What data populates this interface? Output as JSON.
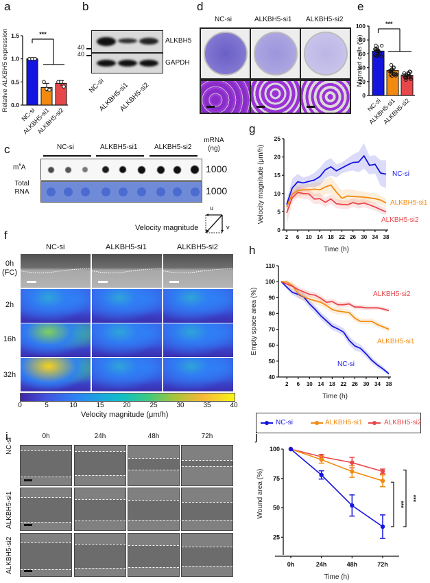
{
  "panels": {
    "a": {
      "label": "a"
    },
    "b": {
      "label": "b"
    },
    "c": {
      "label": "c"
    },
    "d": {
      "label": "d"
    },
    "e": {
      "label": "e"
    },
    "f": {
      "label": "f"
    },
    "g": {
      "label": "g"
    },
    "h": {
      "label": "h"
    },
    "i": {
      "label": "i"
    },
    "j": {
      "label": "j"
    }
  },
  "groups": [
    "NC-si",
    "ALKBH5-si1",
    "ALKBH5-si2"
  ],
  "colors": {
    "nc": "#1515e0",
    "si1": "#f28a10",
    "si2": "#e8474a"
  },
  "blot": {
    "marker1": "40",
    "marker2": "40",
    "protein1": "ALKBH5",
    "protein2": "GAPDH",
    "band_intensity": [
      1.0,
      0.45,
      0.7
    ]
  },
  "dotblot": {
    "row1_label_main": "m",
    "row1_label_sup": "6",
    "row1_label_end": "A",
    "row2_label_line1": "Total",
    "row2_label_line2": "RNA",
    "header_line1": "mRNA",
    "header_line2": "(ng)",
    "amount1": "1000",
    "amount2": "1000"
  },
  "velocity_legend": {
    "label": "Velocity magnitude",
    "u": "u",
    "v": "v"
  },
  "flow_map": {
    "rows": [
      "0h\n(FC)",
      "2h",
      "16h",
      "32h"
    ],
    "row_line1": [
      "0h",
      "2h",
      "16h",
      "32h"
    ],
    "row_line2": [
      "(FC)",
      "",
      "",
      ""
    ],
    "colorbar_ticks": [
      "0",
      "5",
      "10",
      "15",
      "20",
      "25",
      "30",
      "35",
      "40"
    ],
    "colorbar_label": "Velocity magnitude (μm/h)"
  },
  "wound_images": {
    "timepoints": [
      "0h",
      "24h",
      "48h",
      "72h"
    ],
    "rows": [
      "NC-si",
      "ALKBH5-si1",
      "ALKBH5-si2"
    ]
  },
  "chart_data": [
    {
      "id": "a",
      "type": "bar",
      "title": "",
      "xlabel": "",
      "ylabel": "Relative ALKBH5 expression",
      "ylabel_pre": "Relative ",
      "ylabel_italic": "ALKBH5",
      "ylabel_post": " expression",
      "categories": [
        "NC-si",
        "ALKBH5-si1",
        "ALKBH5-si2"
      ],
      "values": [
        1.0,
        0.38,
        0.47
      ],
      "points": [
        [
          1.0,
          1.0,
          1.0
        ],
        [
          0.5,
          0.35,
          0.33
        ],
        [
          0.5,
          0.5,
          0.4
        ]
      ],
      "errors": [
        0.0,
        0.09,
        0.06
      ],
      "ylim": [
        0,
        1.5
      ],
      "yticks": [
        "0.0",
        "0.5",
        "1.0",
        "1.5"
      ],
      "significance": "***"
    },
    {
      "id": "e",
      "type": "bar",
      "title": "",
      "xlabel": "",
      "ylabel": "Migrated cells (%)",
      "categories": [
        "NC-si",
        "ALKBH5-si1",
        "ALKBH5-si2"
      ],
      "values": [
        64,
        36,
        29
      ],
      "errors": [
        8,
        8,
        6
      ],
      "ylim": [
        0,
        100
      ],
      "yticks": [
        "0",
        "20",
        "40",
        "60",
        "80",
        "100"
      ],
      "significance": "***"
    },
    {
      "id": "g",
      "type": "line",
      "xlabel": "Time (h)",
      "ylabel": "Velocity magnitude (μm/h)",
      "xlim": [
        2,
        38
      ],
      "ylim": [
        0,
        25
      ],
      "xticks": [
        "2",
        "6",
        "10",
        "14",
        "18",
        "22",
        "26",
        "30",
        "34",
        "38"
      ],
      "yticks": [
        "0",
        "5",
        "10",
        "15",
        "20",
        "25"
      ],
      "x": [
        2,
        4,
        6,
        8,
        10,
        12,
        14,
        16,
        18,
        20,
        22,
        24,
        26,
        28,
        30,
        32,
        34,
        36,
        38
      ],
      "series": [
        {
          "name": "NC-si",
          "values": [
            7,
            11.5,
            13.2,
            12.9,
            13.3,
            13.7,
            14.6,
            16.5,
            17.3,
            16.2,
            17.0,
            17.8,
            18.5,
            18.6,
            20.3,
            17.7,
            18.0,
            15.6,
            15.3
          ],
          "band": [
            1.2,
            2.5,
            2.2,
            1.5,
            1.5,
            2.0,
            2.4,
            2.4,
            2.4,
            1.8,
            1.5,
            1.8,
            2.2,
            2.8,
            3.5,
            2.5,
            2.5,
            3.5,
            3.8
          ]
        },
        {
          "name": "ALKBH5-si1",
          "values": [
            6.3,
            9.8,
            10.8,
            11.0,
            11.0,
            11.2,
            11.0,
            11.8,
            12.3,
            10.4,
            8.7,
            9.3,
            9.2,
            9.1,
            9.0,
            8.8,
            8.6,
            8.2,
            7.4
          ],
          "band": [
            1.2,
            1.5,
            1.6,
            1.5,
            1.6,
            1.8,
            2.0,
            2.0,
            2.3,
            2.3,
            2.1,
            2.0,
            1.8,
            1.6,
            1.5,
            1.4,
            1.4,
            1.3,
            1.2
          ]
        },
        {
          "name": "ALKBH5-si2",
          "values": [
            4.7,
            8.8,
            10.3,
            10.0,
            9.9,
            8.5,
            8.6,
            7.6,
            8.5,
            7.2,
            7.0,
            6.9,
            7.5,
            7.1,
            7.4,
            6.9,
            6.3,
            5.6,
            5.0
          ],
          "band": [
            3.2,
            1.5,
            1.5,
            1.5,
            1.5,
            1.4,
            1.4,
            1.3,
            1.3,
            1.2,
            1.2,
            1.2,
            1.2,
            1.2,
            1.2,
            1.1,
            1.0,
            1.0,
            1.0
          ]
        }
      ]
    },
    {
      "id": "h",
      "type": "line",
      "xlabel": "Time (h)",
      "ylabel": "Empty space area (%)",
      "xlim": [
        0,
        38
      ],
      "ylim": [
        40,
        110
      ],
      "xticks": [
        "2",
        "6",
        "10",
        "14",
        "18",
        "22",
        "26",
        "30",
        "34",
        "38"
      ],
      "yticks": [
        "40",
        "50",
        "60",
        "70",
        "80",
        "90",
        "100",
        "110"
      ],
      "x": [
        0,
        2,
        4,
        6,
        8,
        10,
        12,
        14,
        16,
        18,
        20,
        22,
        24,
        26,
        28,
        30,
        32,
        34,
        36,
        38
      ],
      "series": [
        {
          "name": "NC-si",
          "values": [
            100,
            96.5,
            93.2,
            92,
            90.3,
            86,
            82.5,
            78.5,
            75.3,
            72,
            70.3,
            68.3,
            63,
            59.5,
            58,
            54.5,
            50.5,
            47.5,
            45,
            42
          ],
          "band": [
            0.5,
            1.2,
            1.8,
            2.2,
            2.4,
            2.5,
            2.5,
            2.4,
            2.4,
            2.3,
            2.3,
            2.5,
            2.8,
            2.8,
            2.4,
            2.2,
            2.0,
            1.8,
            1.5,
            1.2
          ]
        },
        {
          "name": "ALKBH5-si1",
          "values": [
            100,
            99.8,
            97.5,
            92.5,
            90.5,
            89,
            88,
            87,
            85,
            82.5,
            81.5,
            81,
            80.5,
            77,
            75,
            75,
            75,
            73,
            71.5,
            70
          ],
          "band": [
            0.5,
            1.5,
            2.5,
            3,
            2.5,
            2.2,
            2.2,
            2.2,
            2.2,
            2.2,
            2.2,
            2.0,
            2.0,
            2.0,
            1.8,
            1.8,
            1.8,
            1.8,
            1.6,
            1.5
          ]
        },
        {
          "name": "ALKBH5-si2",
          "values": [
            100,
            98.5,
            97,
            95,
            93.5,
            92,
            91.5,
            89.5,
            87,
            87.5,
            85.5,
            85.5,
            86,
            84,
            84,
            83.5,
            83.5,
            83.5,
            82.8,
            81.8
          ],
          "band": [
            0.5,
            1.5,
            2.0,
            2.0,
            2.0,
            2.0,
            1.8,
            1.8,
            1.8,
            1.8,
            1.8,
            1.6,
            1.6,
            1.5,
            1.5,
            1.4,
            1.4,
            1.3,
            1.2,
            1.2
          ]
        }
      ],
      "annotations": [
        "ALKBH5-si2",
        "ALKBH5-si1",
        "NC-si"
      ]
    },
    {
      "id": "j",
      "type": "line",
      "xlabel": "Time (h)",
      "ylabel": "Wound area (%)",
      "categories": [
        "0h",
        "24h",
        "48h",
        "72h"
      ],
      "ylim": [
        10,
        100
      ],
      "yticks": [
        "25",
        "50",
        "75",
        "100"
      ],
      "legend": [
        "NC-si",
        "ALKBH5-si1",
        "ALKBH5-si2"
      ],
      "legend_position": "top",
      "series": [
        {
          "name": "NC-si",
          "values": [
            100,
            78,
            52,
            34
          ],
          "errors": [
            0,
            3.5,
            9,
            10
          ]
        },
        {
          "name": "ALKBH5-si1",
          "values": [
            100,
            91,
            81,
            73
          ],
          "errors": [
            0,
            3,
            5,
            5
          ]
        },
        {
          "name": "ALKBH5-si2",
          "values": [
            100,
            93.5,
            88.5,
            81
          ],
          "errors": [
            0,
            2,
            4.5,
            2
          ]
        }
      ],
      "significance": [
        "***",
        "***"
      ]
    }
  ]
}
